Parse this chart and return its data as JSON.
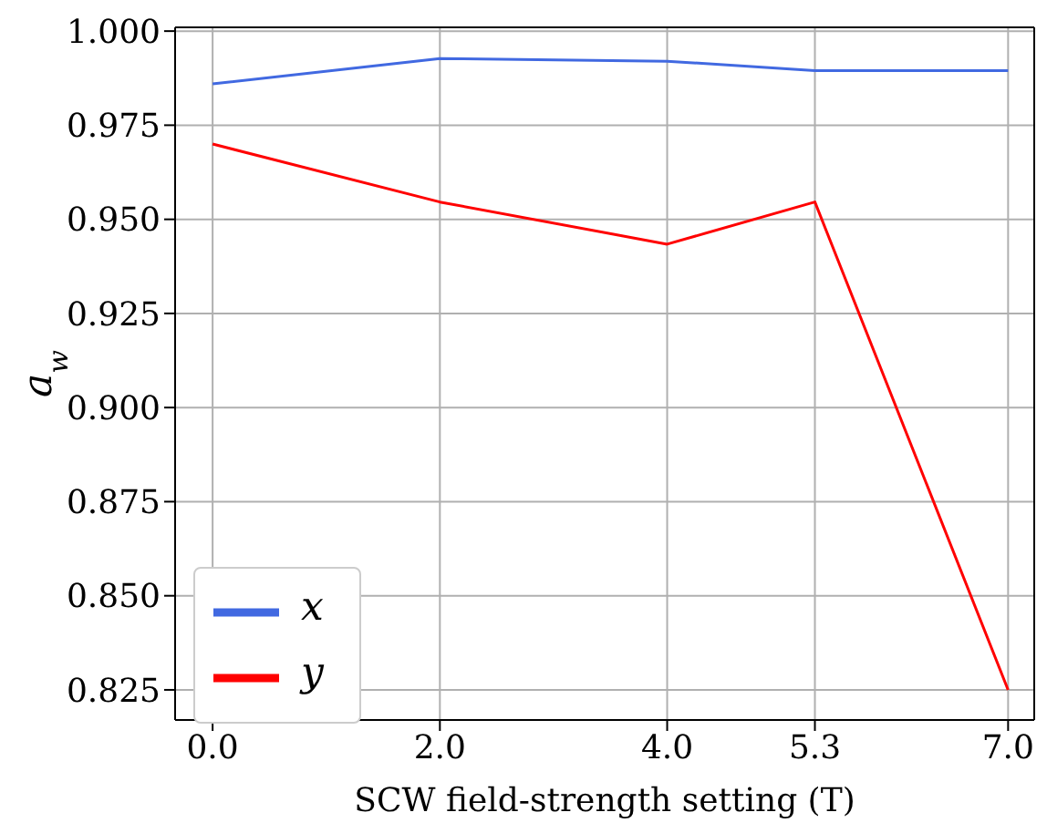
{
  "chart_data": {
    "type": "line",
    "xlabel": "SCW field-strength setting (T)",
    "ylabel": "a$_{w}$",
    "x": [
      0,
      2,
      4,
      5.3,
      7
    ],
    "series": [
      {
        "name": "x",
        "color": "#4169e1",
        "values": [
          0.986,
          0.9927,
          0.992,
          0.9895,
          0.9895
        ]
      },
      {
        "name": "y",
        "color": "#ff0000",
        "values": [
          0.97,
          0.9546,
          0.9434,
          0.9546,
          0.825
        ]
      }
    ],
    "xlim": [
      -0.33,
      7.23
    ],
    "ylim": [
      0.817,
      1.001
    ],
    "xticks": [
      {
        "value": 0,
        "label": "0.0"
      },
      {
        "value": 2,
        "label": "2.0"
      },
      {
        "value": 4,
        "label": "4.0"
      },
      {
        "value": 5.3,
        "label": "5.3"
      },
      {
        "value": 7,
        "label": "7.0"
      }
    ],
    "yticks": [
      {
        "value": 0.825,
        "label": "0.825"
      },
      {
        "value": 0.85,
        "label": "0.850"
      },
      {
        "value": 0.875,
        "label": "0.875"
      },
      {
        "value": 0.9,
        "label": "0.900"
      },
      {
        "value": 0.925,
        "label": "0.925"
      },
      {
        "value": 0.95,
        "label": "0.950"
      },
      {
        "value": 0.975,
        "label": "0.975"
      },
      {
        "value": 1,
        "label": "1.000"
      }
    ],
    "grid": true,
    "legend": "bottom left",
    "marker": "none",
    "line_style": "solid"
  }
}
